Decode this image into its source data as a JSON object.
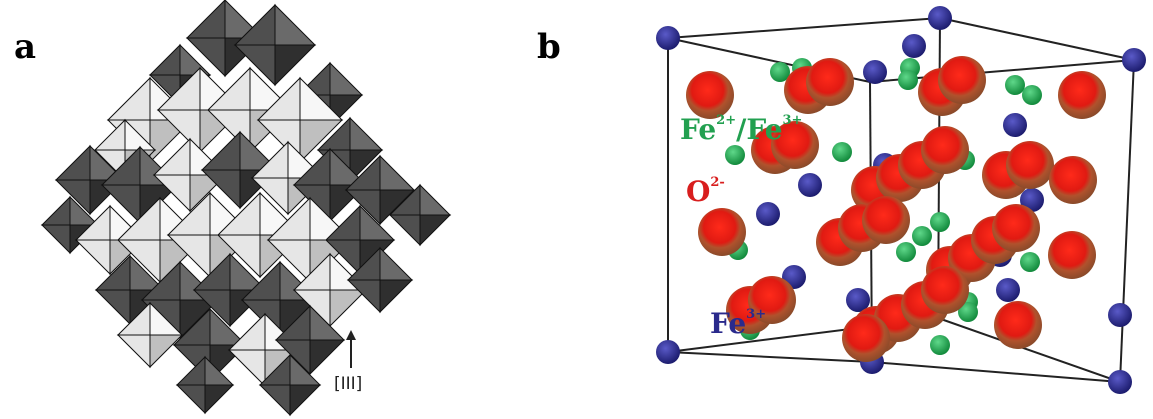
{
  "panels": {
    "a": {
      "letter": "a",
      "axis_label": "[III]"
    },
    "b": {
      "letter": "b",
      "labels": {
        "fe23": {
          "base1": "Fe",
          "sup1": "2+",
          "sep": "/Fe",
          "sup2": "3+"
        },
        "o2": {
          "base": "O",
          "sup": "2-"
        },
        "fe3": {
          "base": "Fe",
          "sup": "3+"
        }
      }
    }
  },
  "colors": {
    "octa_light": "#e6e6e6",
    "octa_dark": "#4f4f4f",
    "oxygen": "#e01a12",
    "oxygen_shell": "#a0522d",
    "fe_mixed": "#22a050",
    "fe3": "#2a2a8c"
  }
}
